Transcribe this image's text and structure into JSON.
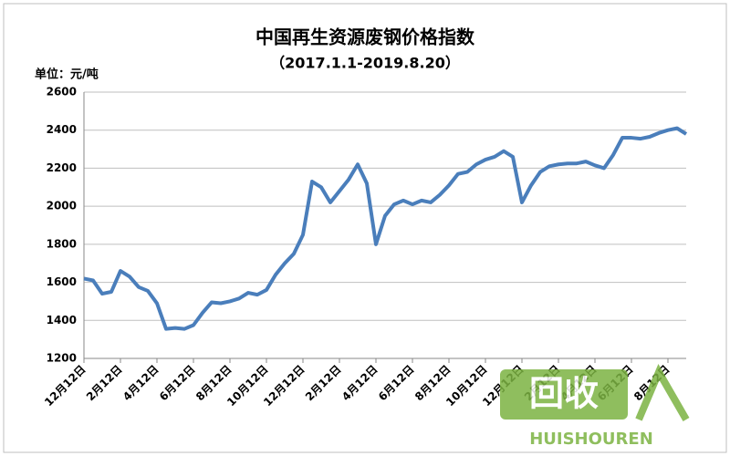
{
  "chart_data": {
    "type": "line",
    "title": "中国再生资源废钢价格指数",
    "subtitle": "（2017.1.1-2019.8.20）",
    "y_label": "单位：元/吨",
    "categories": [
      "12月12日",
      null,
      null,
      null,
      "2月12日",
      null,
      null,
      null,
      "4月12日",
      null,
      null,
      null,
      "6月12日",
      null,
      null,
      null,
      "8月12日",
      null,
      null,
      null,
      "10月12日",
      null,
      null,
      null,
      "12月12日",
      null,
      null,
      null,
      "2月12日",
      null,
      null,
      null,
      "4月12日",
      null,
      null,
      null,
      "6月12日",
      null,
      null,
      null,
      "8月12日",
      null,
      null,
      null,
      "10月12日",
      null,
      null,
      null,
      "12月12日",
      null,
      null,
      null,
      "2月12日",
      null,
      null,
      null,
      "4月12日",
      null,
      null,
      null,
      "6月12日",
      null,
      null,
      null,
      "8月12日",
      null,
      null
    ],
    "series": [
      {
        "name": "废钢价格指数",
        "color": "#4a7ebb",
        "values": [
          1620,
          1610,
          1540,
          1550,
          1660,
          1630,
          1575,
          1555,
          1490,
          1355,
          1360,
          1355,
          1375,
          1440,
          1495,
          1490,
          1500,
          1515,
          1545,
          1535,
          1560,
          1640,
          1700,
          1750,
          1850,
          2130,
          2100,
          2020,
          2080,
          2140,
          2220,
          2120,
          1800,
          1950,
          2010,
          2030,
          2010,
          2030,
          2020,
          2060,
          2110,
          2170,
          2180,
          2220,
          2245,
          2260,
          2290,
          2260,
          2020,
          2110,
          2180,
          2210,
          2220,
          2225,
          2225,
          2235,
          2215,
          2200,
          2270,
          2360,
          2360,
          2355,
          2365,
          2385,
          2400,
          2410,
          2380
        ]
      }
    ],
    "ylim": [
      1200,
      2600
    ],
    "yticks": [
      1200,
      1400,
      1600,
      1800,
      2000,
      2200,
      2400,
      2600
    ],
    "grid": true,
    "legend": false
  },
  "watermark": {
    "logo": "回收",
    "brand": "HUISHOUREN"
  }
}
